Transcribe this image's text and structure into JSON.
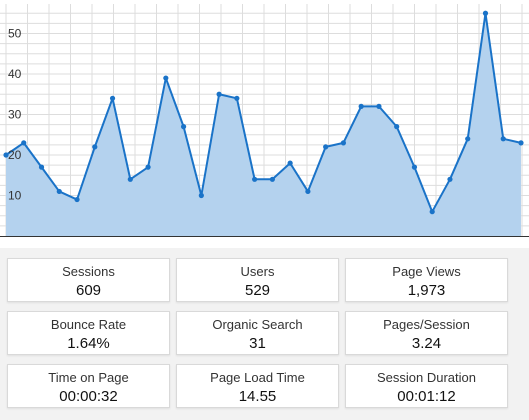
{
  "chart_data": {
    "type": "area",
    "ylim": [
      0,
      55
    ],
    "y_ticks": [
      10,
      20,
      30,
      40,
      50
    ],
    "grid": true,
    "values": [
      20,
      23,
      17,
      11,
      9,
      22,
      34,
      14,
      17,
      39,
      27,
      10,
      35,
      34,
      14,
      14,
      18,
      11,
      22,
      23,
      32,
      32,
      27,
      17,
      6,
      14,
      24,
      55,
      24,
      23
    ],
    "colors": {
      "line": "#1a73c8",
      "fill": "#b4d2ee",
      "grid": "#dddddd",
      "baseline": "#333333"
    }
  },
  "stats": [
    {
      "label": "Sessions",
      "value": "609"
    },
    {
      "label": "Users",
      "value": "529"
    },
    {
      "label": "Page Views",
      "value": "1,973"
    },
    {
      "label": "Bounce Rate",
      "value": "1.64%"
    },
    {
      "label": "Organic Search",
      "value": "31"
    },
    {
      "label": "Pages/Session",
      "value": "3.24"
    },
    {
      "label": "Time on Page",
      "value": "00:00:32"
    },
    {
      "label": "Page Load Time",
      "value": "14.55"
    },
    {
      "label": "Session Duration",
      "value": "00:01:12"
    }
  ]
}
